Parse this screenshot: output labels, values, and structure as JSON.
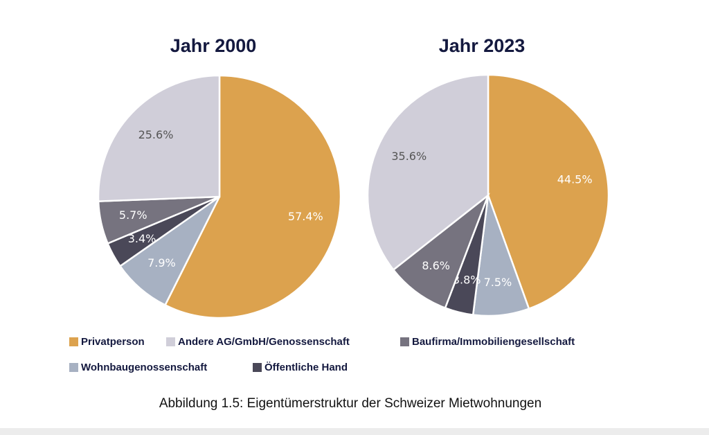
{
  "chart_data": [
    {
      "type": "pie",
      "title": "Jahr 2000",
      "categories": [
        "Privatperson",
        "Wohnbaugenossenschaft",
        "Öffentliche Hand",
        "Baufirma/Immobiliengesellschaft",
        "Andere AG/GmbH/Genossenschaft"
      ],
      "values": [
        57.4,
        7.9,
        3.4,
        5.7,
        25.6
      ],
      "value_labels": [
        "57.4%",
        "7.9%",
        "3.4%",
        "5.7%",
        "25.6%"
      ],
      "colors": [
        "#dca24e",
        "#a7b1c2",
        "#4a4858",
        "#76737f",
        "#d0ced9"
      ]
    },
    {
      "type": "pie",
      "title": "Jahr 2023",
      "categories": [
        "Privatperson",
        "Wohnbaugenossenschaft",
        "Öffentliche Hand",
        "Baufirma/Immobiliengesellschaft",
        "Andere AG/GmbH/Genossenschaft"
      ],
      "values": [
        44.5,
        7.5,
        3.8,
        8.6,
        35.6
      ],
      "value_labels": [
        "44.5%",
        "7.5%",
        "3.8%",
        "8.6%",
        "35.6%"
      ],
      "colors": [
        "#dca24e",
        "#a7b1c2",
        "#4a4858",
        "#76737f",
        "#d0ced9"
      ]
    }
  ],
  "caption": "Abbildung 1.5: Eigentümerstruktur der Schweizer Mietwohnungen"
}
